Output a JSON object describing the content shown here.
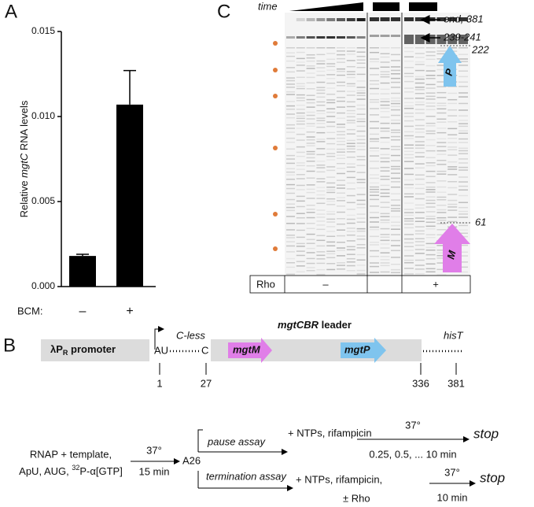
{
  "chart_data": {
    "type": "bar",
    "panel": "A",
    "y_label": [
      "Relative ",
      "mgtC",
      " RNA levels"
    ],
    "x_label": "BCM:",
    "categories": [
      "–",
      "+"
    ],
    "values": [
      0.0018,
      0.0107
    ],
    "errors": [
      0.0001,
      0.002
    ],
    "color": "#000000",
    "ylim": [
      0,
      0.015
    ],
    "yticks": [
      {
        "value": 0,
        "label": "0.000"
      },
      {
        "value": 0.005,
        "label": "0.005"
      },
      {
        "value": 0.01,
        "label": "0.010"
      },
      {
        "value": 0.015,
        "label": "0.015"
      }
    ]
  },
  "panel_c": {
    "label": "C",
    "time": "time",
    "annotations": [
      "end, 381",
      "239-241",
      "222",
      "61"
    ],
    "arrows": [
      "P",
      "M"
    ],
    "row_label": "Rho",
    "conditions": [
      "–",
      "+"
    ]
  },
  "panel_b": {
    "label": "B",
    "promoter": [
      "λP",
      "R",
      " promoter"
    ],
    "start": "AU",
    "c_less": "C-less",
    "c": "C",
    "leader": [
      "mgtCBR",
      " leader"
    ],
    "mgtM": "mgtM",
    "mgtP": "mgtP",
    "hisT": "hisT",
    "positions": [
      "1",
      "27",
      "336",
      "381"
    ],
    "reagents": [
      "RNAP + template,",
      "ApU, AUG, ",
      "32",
      "P-α[GTP]"
    ],
    "step1": [
      "37°",
      "15 min"
    ],
    "complex": "A26",
    "pause": {
      "name": "pause assay",
      "additions": "+ NTPs, rifampicin",
      "temp": "37°",
      "times": "0.25, 0.5, ... 10 min",
      "end": "stop"
    },
    "termination": {
      "name": "termination assay",
      "additions": [
        "+ NTPs, rifampicin,",
        "± Rho"
      ],
      "temp": "37°",
      "time": "10 min",
      "end": "stop"
    }
  }
}
